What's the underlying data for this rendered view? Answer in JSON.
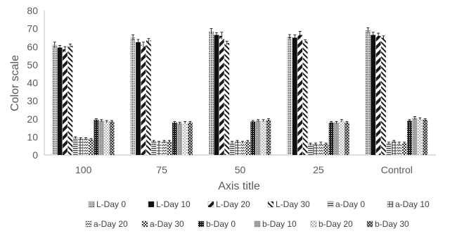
{
  "chart_data": {
    "type": "bar",
    "title": "",
    "xlabel": "Axis title",
    "ylabel": "Color scale",
    "ylim": [
      0,
      80
    ],
    "yticks": [
      0,
      10,
      20,
      30,
      40,
      50,
      60,
      70,
      80
    ],
    "grid": false,
    "legend_position": "bottom",
    "categories": [
      "100",
      "75",
      "50",
      "25",
      "Control"
    ],
    "series": [
      {
        "name": "L-Day 0",
        "pattern": "dots-dense",
        "values": [
          61,
          65,
          68.5,
          65.5,
          69
        ],
        "errors": [
          1.5,
          1.5,
          1.5,
          1.2,
          1.5
        ]
      },
      {
        "name": "L-Day 10",
        "pattern": "solid",
        "values": [
          59.5,
          62.5,
          66.5,
          65,
          66.5
        ],
        "errors": [
          1.2,
          1.5,
          1.2,
          1.5,
          1.5
        ]
      },
      {
        "name": "L-Day 20",
        "pattern": "diag-wide",
        "values": [
          58.5,
          61,
          66,
          66.5,
          66
        ],
        "errors": [
          1.5,
          1.5,
          2,
          2,
          1.5
        ]
      },
      {
        "name": "L-Day 30",
        "pattern": "diag-back",
        "values": [
          60.5,
          63.5,
          62,
          63,
          65
        ],
        "errors": [
          1,
          1,
          1,
          0.8,
          1
        ]
      },
      {
        "name": "a-Day 0",
        "pattern": "hlines",
        "values": [
          9.5,
          7.5,
          7,
          6,
          6.5
        ],
        "errors": [
          0.6,
          0.6,
          0.6,
          0.6,
          0.6
        ]
      },
      {
        "name": "a-Day 10",
        "pattern": "cross",
        "values": [
          9,
          7,
          7.5,
          6,
          7.5
        ],
        "errors": [
          0.6,
          0.6,
          0.6,
          0.6,
          0.6
        ]
      },
      {
        "name": "a-Day 20",
        "pattern": "wave",
        "values": [
          9,
          7.5,
          7,
          6.5,
          6.5
        ],
        "errors": [
          0.6,
          0.6,
          0.6,
          0.6,
          0.6
        ]
      },
      {
        "name": "a-Day 30",
        "pattern": "checker",
        "values": [
          8.5,
          7.5,
          7.5,
          6,
          6.5
        ],
        "errors": [
          0.6,
          0.6,
          0.6,
          0.6,
          0.6
        ]
      },
      {
        "name": "b-Day 0",
        "pattern": "dark-dots",
        "values": [
          19.5,
          18,
          18.5,
          18,
          19
        ],
        "errors": [
          0.6,
          0.6,
          0.6,
          0.6,
          0.6
        ]
      },
      {
        "name": "b-Day 10",
        "pattern": "light-gray",
        "values": [
          19,
          17.5,
          19,
          18,
          20.5
        ],
        "errors": [
          0.6,
          0.6,
          0.6,
          0.6,
          0.8
        ]
      },
      {
        "name": "b-Day 20",
        "pattern": "sparse-dots",
        "values": [
          18.5,
          18,
          19,
          19,
          20
        ],
        "errors": [
          0.6,
          0.6,
          0.6,
          0.6,
          0.6
        ]
      },
      {
        "name": "b-Day 30",
        "pattern": "zigzag",
        "values": [
          18.5,
          18,
          19.5,
          18,
          19.5
        ],
        "errors": [
          0.6,
          0.6,
          0.6,
          0.6,
          0.6
        ]
      }
    ]
  }
}
